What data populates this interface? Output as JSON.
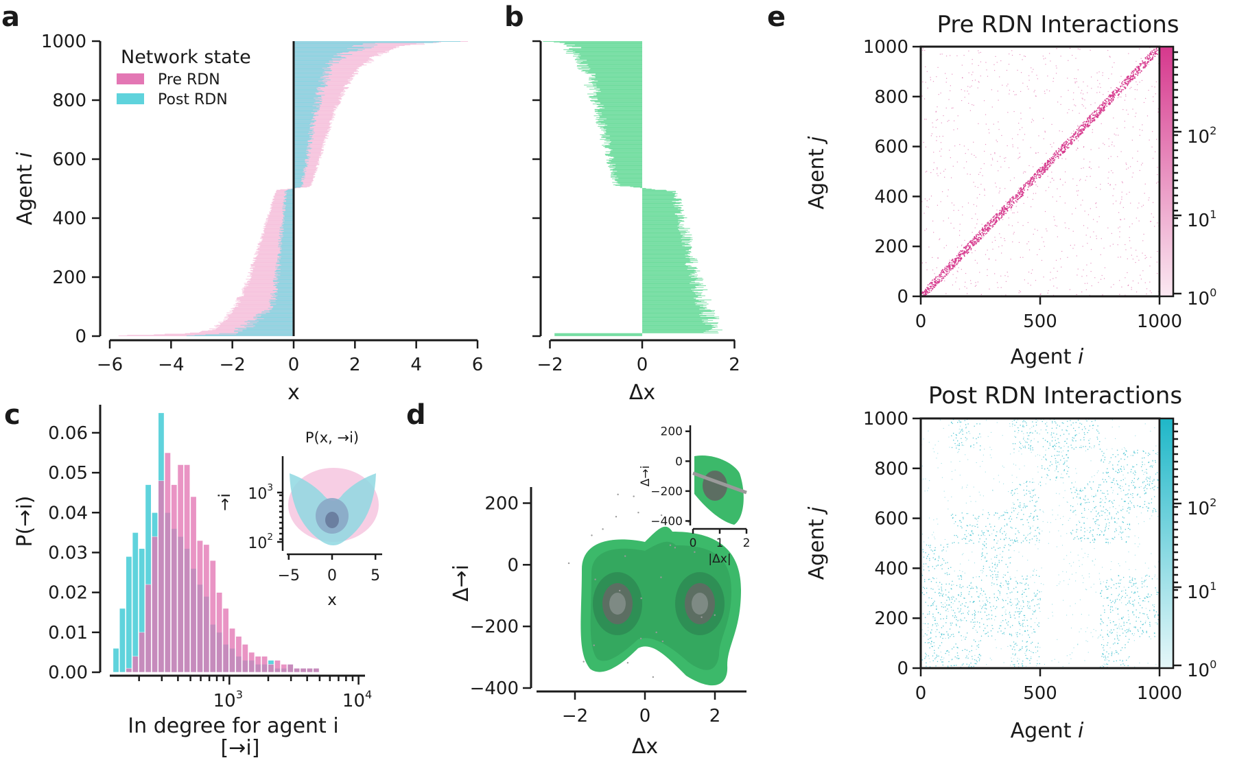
{
  "panels": {
    "a": "a",
    "b": "b",
    "c": "c",
    "d": "d",
    "e": "e"
  },
  "colors": {
    "pre_rdn": "#e377b4",
    "post_rdn": "#5fd3dc",
    "delta": "#6fdc9e",
    "density_green": "#3cb96a",
    "heat_pre": "#d6388d",
    "heat_post": "#1fb7c8"
  },
  "chart_data": [
    {
      "id": "a",
      "type": "bar",
      "orientation": "horizontal",
      "xlabel": "x",
      "ylabel": "Agent i",
      "xlim": [
        -6,
        6
      ],
      "ylim": [
        0,
        1000
      ],
      "xticks": [
        "−6",
        "−4",
        "−2",
        "0",
        "2",
        "4",
        "6"
      ],
      "yticks": [
        "0",
        "200",
        "400",
        "600",
        "800",
        "1000"
      ],
      "legend": {
        "title": "Network state",
        "placement": "upper-left",
        "entries": [
          "Pre RDN",
          "Post RDN"
        ]
      },
      "series": [
        {
          "name": "Pre RDN",
          "agent": [
            0,
            10,
            20,
            50,
            100,
            150,
            200,
            250,
            300,
            350,
            400,
            450,
            495,
            505,
            550,
            600,
            650,
            700,
            750,
            800,
            850,
            900,
            950,
            980,
            995,
            1000
          ],
          "x": [
            -5.9,
            -3.2,
            -2.7,
            -2.3,
            -1.9,
            -1.65,
            -1.45,
            -1.3,
            -1.15,
            -1.0,
            -0.85,
            -0.7,
            -0.55,
            0.55,
            0.7,
            0.85,
            1.0,
            1.15,
            1.3,
            1.5,
            1.75,
            2.1,
            2.7,
            3.4,
            4.6,
            6.0
          ]
        },
        {
          "name": "Post RDN",
          "agent": [
            0,
            10,
            100,
            200,
            300,
            400,
            495,
            505,
            600,
            700,
            800,
            900,
            950,
            990,
            1000
          ],
          "x": [
            -3.0,
            -1.8,
            -0.7,
            -0.55,
            -0.45,
            -0.35,
            -0.25,
            0.25,
            0.45,
            0.6,
            0.8,
            1.1,
            1.5,
            2.5,
            6.0
          ]
        }
      ]
    },
    {
      "id": "b",
      "type": "bar",
      "orientation": "horizontal",
      "xlabel": "Δx",
      "xlim": [
        -2,
        2
      ],
      "ylim": [
        0,
        1000
      ],
      "xticks": [
        "−2",
        "0",
        "2"
      ],
      "series": [
        {
          "name": "Δx",
          "agent": [
            0,
            10,
            20,
            100,
            200,
            300,
            400,
            490,
            510,
            600,
            700,
            800,
            900,
            980,
            995
          ],
          "x": [
            -1.9,
            1.5,
            1.6,
            1.35,
            1.15,
            1.0,
            0.85,
            0.7,
            -0.55,
            -0.7,
            -0.85,
            -1.0,
            -1.2,
            -1.55,
            -1.9
          ]
        }
      ]
    },
    {
      "id": "c",
      "type": "bar",
      "xlabel": "In degree for agent i",
      "xlabel2": "[→i]",
      "ylabel": "P(→i)",
      "xscale": "log",
      "ylim": [
        0,
        0.068
      ],
      "yticks": [
        "0.00",
        "0.01",
        "0.02",
        "0.03",
        "0.04",
        "0.05",
        "0.06"
      ],
      "series": [
        {
          "name": "Post RDN",
          "bin_left_log10": [
            2.1,
            2.15,
            2.2,
            2.25,
            2.3,
            2.35,
            2.4,
            2.45,
            2.5,
            2.55,
            2.6,
            2.65,
            2.7,
            2.75,
            2.8,
            2.85,
            2.9,
            2.95,
            3.0,
            3.05,
            3.1,
            3.15,
            3.2,
            3.25,
            3.3,
            3.35,
            3.4,
            3.45,
            3.5,
            3.55,
            3.6,
            3.65
          ],
          "values": [
            0.006,
            0.016,
            0.029,
            0.035,
            0.031,
            0.047,
            0.04,
            0.065,
            0.04,
            0.036,
            0.034,
            0.031,
            0.026,
            0.022,
            0.019,
            0.012,
            0.01,
            0.007,
            0.006,
            0.004,
            0.003,
            0.003,
            0.002,
            0.002,
            0.003,
            0.001,
            0.001,
            0.002,
            0.001,
            0.001,
            0.001,
            0.001
          ]
        },
        {
          "name": "Pre RDN",
          "bin_left_log10": [
            2.2,
            2.25,
            2.3,
            2.35,
            2.4,
            2.45,
            2.5,
            2.55,
            2.6,
            2.65,
            2.7,
            2.75,
            2.8,
            2.85,
            2.9,
            2.95,
            3.0,
            3.05,
            3.1,
            3.15,
            3.2,
            3.25,
            3.3,
            3.35,
            3.4,
            3.45,
            3.5,
            3.55,
            3.6,
            3.65
          ],
          "values": [
            0.001,
            0.004,
            0.01,
            0.022,
            0.034,
            0.048,
            0.055,
            0.047,
            0.052,
            0.052,
            0.044,
            0.033,
            0.032,
            0.028,
            0.02,
            0.016,
            0.011,
            0.009,
            0.007,
            0.005,
            0.004,
            0.004,
            0.002,
            0.003,
            0.002,
            0.002,
            0.001,
            0.001,
            0.001,
            0.001
          ]
        }
      ],
      "inset": {
        "title": "P(x, →i)",
        "xlabel": "x",
        "ylabel": "→i",
        "xticks": [
          "−5",
          "0",
          "5"
        ],
        "yticks": [
          "10^2",
          "10^3"
        ]
      }
    },
    {
      "id": "d",
      "type": "heatmap",
      "subtype": "density",
      "xlabel": "Δx",
      "ylabel": "Δ→i",
      "xlim": [
        -3,
        3
      ],
      "ylim": [
        -400,
        250
      ],
      "xticks": [
        "−2",
        "0",
        "2"
      ],
      "yticks": [
        "−400",
        "−200",
        "0",
        "200"
      ],
      "inset": {
        "xlabel": "|Δx|",
        "ylabel": "Δ→i",
        "xticks": [
          "0",
          "1",
          "2"
        ],
        "yticks": [
          "−400",
          "−200",
          "0",
          "200"
        ],
        "fit_line": {
          "x": [
            0,
            2
          ],
          "y": [
            -80,
            -210
          ]
        }
      }
    },
    {
      "id": "e1",
      "type": "heatmap",
      "title": "Pre RDN Interactions",
      "xlabel": "Agent i",
      "ylabel": "Agent j",
      "xlim": [
        0,
        1000
      ],
      "ylim": [
        0,
        1000
      ],
      "xticks": [
        "0",
        "500",
        "1000"
      ],
      "yticks": [
        "0",
        "200",
        "400",
        "600",
        "800",
        "1000"
      ],
      "colorbar": {
        "scale": "log",
        "ticks": [
          "10^0",
          "10^1",
          "10^2"
        ]
      }
    },
    {
      "id": "e2",
      "type": "heatmap",
      "title": "Post RDN Interactions",
      "xlabel": "Agent i",
      "ylabel": "Agent j",
      "xlim": [
        0,
        1000
      ],
      "ylim": [
        0,
        1000
      ],
      "xticks": [
        "0",
        "500",
        "1000"
      ],
      "yticks": [
        "0",
        "200",
        "400",
        "600",
        "800",
        "1000"
      ],
      "colorbar": {
        "scale": "log",
        "ticks": [
          "10^0",
          "10^1",
          "10^2"
        ]
      }
    }
  ]
}
